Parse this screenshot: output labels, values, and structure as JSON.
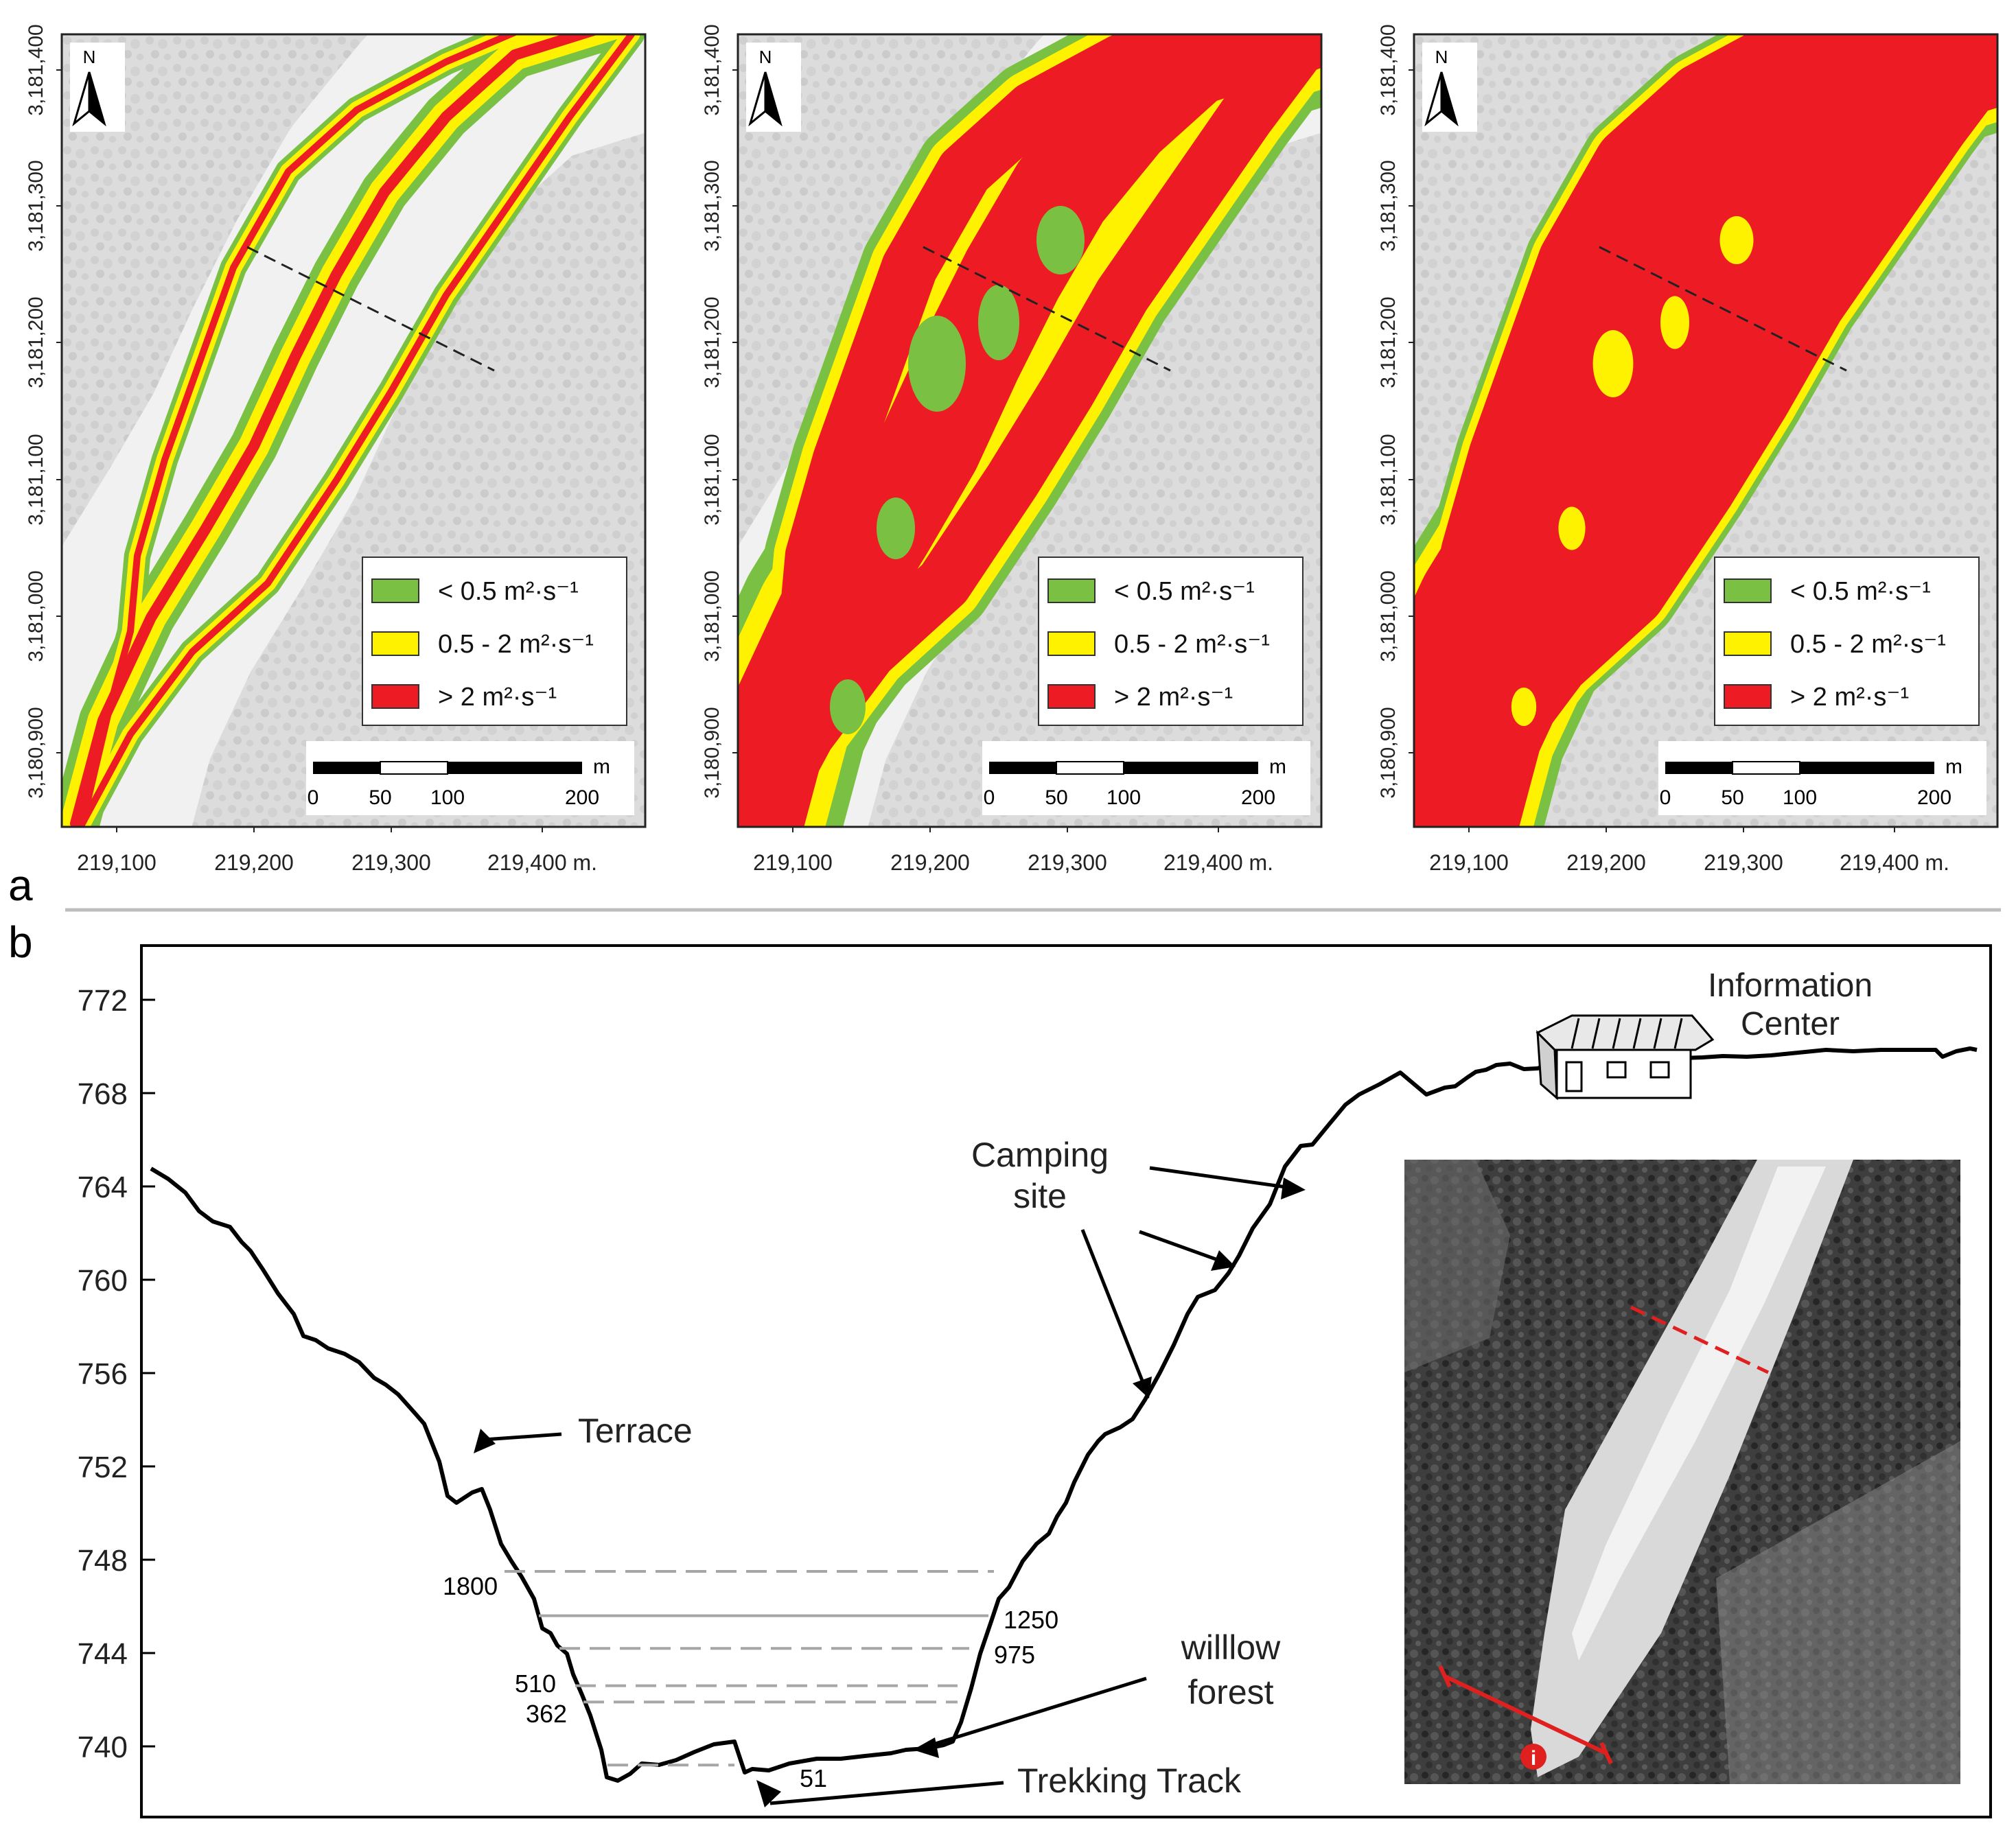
{
  "panel_a": {
    "label": "a",
    "north_label": "N",
    "y_ticks": [
      "3,181,400",
      "3,181,300",
      "3,181,200",
      "3,181,100",
      "3,181,000",
      "3,180,900"
    ],
    "x_ticks": [
      "219,100",
      "219,200",
      "219,300",
      "219,400 m."
    ],
    "legend": [
      {
        "label": "< 0.5 m²·s⁻¹",
        "color": "#7ac143"
      },
      {
        "label": "0.5 - 2 m²·s⁻¹",
        "color": "#fff200"
      },
      {
        "label": "> 2 m²·s⁻¹",
        "color": "#ed1c24"
      }
    ],
    "scale_bar": {
      "unit": "m",
      "labels": [
        "0",
        "50",
        "100",
        "200"
      ]
    },
    "maps": [
      {
        "flow_level": "low"
      },
      {
        "flow_level": "medium"
      },
      {
        "flow_level": "high"
      }
    ]
  },
  "panel_b": {
    "label": "b",
    "y_ticks": [
      "772",
      "768",
      "764",
      "760",
      "756",
      "752",
      "748",
      "744",
      "740"
    ],
    "annotations": {
      "information_center": [
        "Information",
        "Center"
      ],
      "camping_site": [
        "Camping",
        "site"
      ],
      "terrace": "Terrace",
      "willow_forest": [
        "willlow",
        "forest"
      ],
      "trekking_track": "Trekking Track",
      "inset_marker": "i"
    },
    "water_levels": [
      {
        "discharge": "1800",
        "elevation": 747.5,
        "style": "dashed"
      },
      {
        "discharge": "1250",
        "elevation": 745.6,
        "style": "solid"
      },
      {
        "discharge": "975",
        "elevation": 744.2,
        "style": "dashed"
      },
      {
        "discharge": "510",
        "elevation": 742.6,
        "style": "dashed"
      },
      {
        "discharge": "362",
        "elevation": 741.9,
        "style": "dashed"
      },
      {
        "discharge": "51",
        "elevation": 739.2,
        "style": "dashed"
      }
    ]
  },
  "colors": {
    "low": "#7ac143",
    "mid": "#fff200",
    "high": "#ed1c24",
    "map_background": "#e6e6e6",
    "profile_line": "#000000",
    "water_line": "#a6a6a6"
  }
}
